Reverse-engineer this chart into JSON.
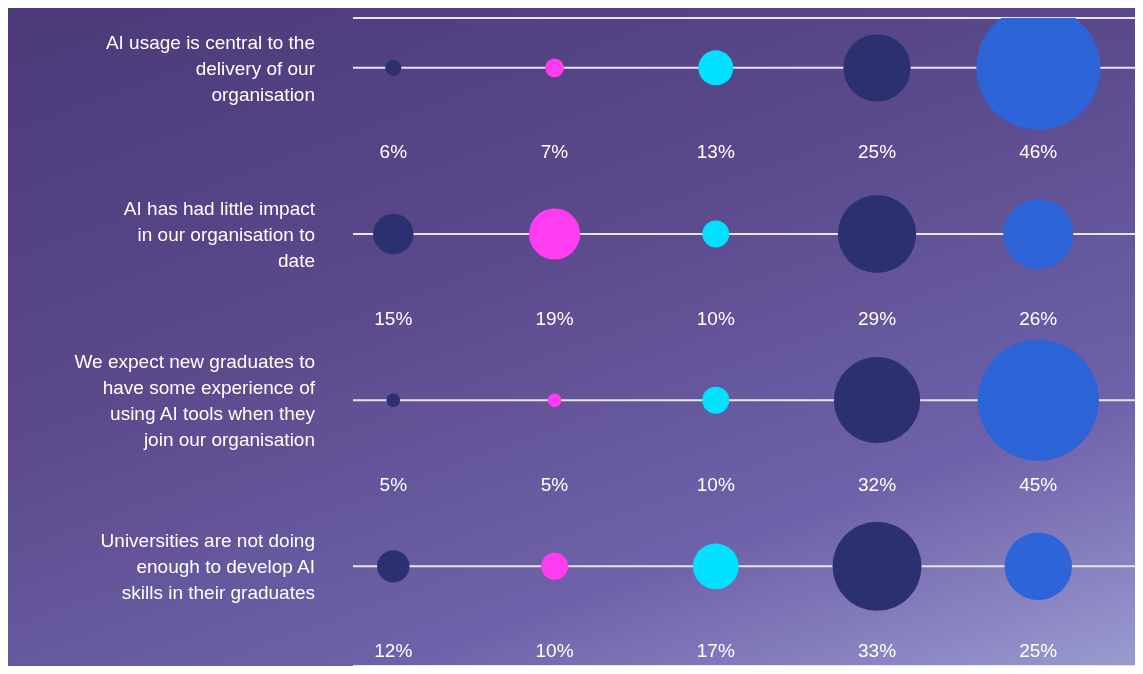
{
  "chart_data": {
    "type": "other",
    "categories": [
      "AI usage is central to the delivery of our organisation",
      "AI has had little impact in our organisation to date",
      "We expect new graduates to have some experience of using AI tools when they join our organisation",
      "Universities are not doing enough to develop AI skills in their graduates"
    ],
    "series": [
      {
        "color": "#2b3170",
        "values": [
          6,
          15,
          5,
          12
        ],
        "value_labels": [
          "6%",
          "15%",
          "5%",
          "12%"
        ]
      },
      {
        "color": "#ff3cf0",
        "values": [
          7,
          19,
          5,
          10
        ],
        "value_labels": [
          "7%",
          "19%",
          "5%",
          "10%"
        ]
      },
      {
        "color": "#00e1ff",
        "values": [
          13,
          10,
          10,
          17
        ],
        "value_labels": [
          "13%",
          "10%",
          "10%",
          "17%"
        ]
      },
      {
        "color": "#2b3170",
        "values": [
          25,
          29,
          32,
          33
        ],
        "value_labels": [
          "25%",
          "29%",
          "32%",
          "33%"
        ]
      },
      {
        "color": "#2d64d8",
        "values": [
          46,
          26,
          45,
          25
        ],
        "value_labels": [
          "46%",
          "26%",
          "45%",
          "25%"
        ]
      }
    ],
    "legend": false
  }
}
